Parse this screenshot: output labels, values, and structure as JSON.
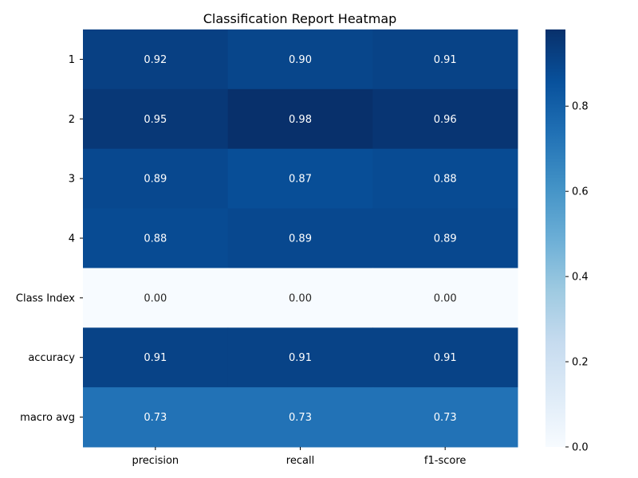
{
  "chart_data": {
    "type": "heatmap",
    "title": "Classification Report Heatmap",
    "xlabel": "",
    "ylabel": "",
    "columns": [
      "precision",
      "recall",
      "f1-score"
    ],
    "rows": [
      "1",
      "2",
      "3",
      "4",
      "Class Index",
      "accuracy",
      "macro avg"
    ],
    "values": [
      [
        0.92,
        0.9,
        0.91
      ],
      [
        0.95,
        0.98,
        0.96
      ],
      [
        0.89,
        0.87,
        0.88
      ],
      [
        0.88,
        0.89,
        0.89
      ],
      [
        0.0,
        0.0,
        0.0
      ],
      [
        0.91,
        0.91,
        0.91
      ],
      [
        0.73,
        0.73,
        0.73
      ]
    ],
    "labels": [
      [
        "0.92",
        "0.90",
        "0.91"
      ],
      [
        "0.95",
        "0.98",
        "0.96"
      ],
      [
        "0.89",
        "0.87",
        "0.88"
      ],
      [
        "0.88",
        "0.89",
        "0.89"
      ],
      [
        "0.00",
        "0.00",
        "0.00"
      ],
      [
        "0.91",
        "0.91",
        "0.91"
      ],
      [
        "0.73",
        "0.73",
        "0.73"
      ]
    ],
    "colormap": "Blues",
    "vmin": 0.0,
    "vmax": 0.98,
    "colorbar_ticks": [
      0.0,
      0.2,
      0.4,
      0.6,
      0.8
    ],
    "colorbar_tick_labels": [
      "0.0",
      "0.2",
      "0.4",
      "0.6",
      "0.8"
    ],
    "colors": {
      "blues_stops": [
        "#f7fbff",
        "#deebf7",
        "#c6dbef",
        "#9ecae1",
        "#6baed6",
        "#4292c6",
        "#2171b5",
        "#08519c",
        "#08306b"
      ],
      "text_light": "#ffffff",
      "text_dark": "#262626"
    }
  }
}
